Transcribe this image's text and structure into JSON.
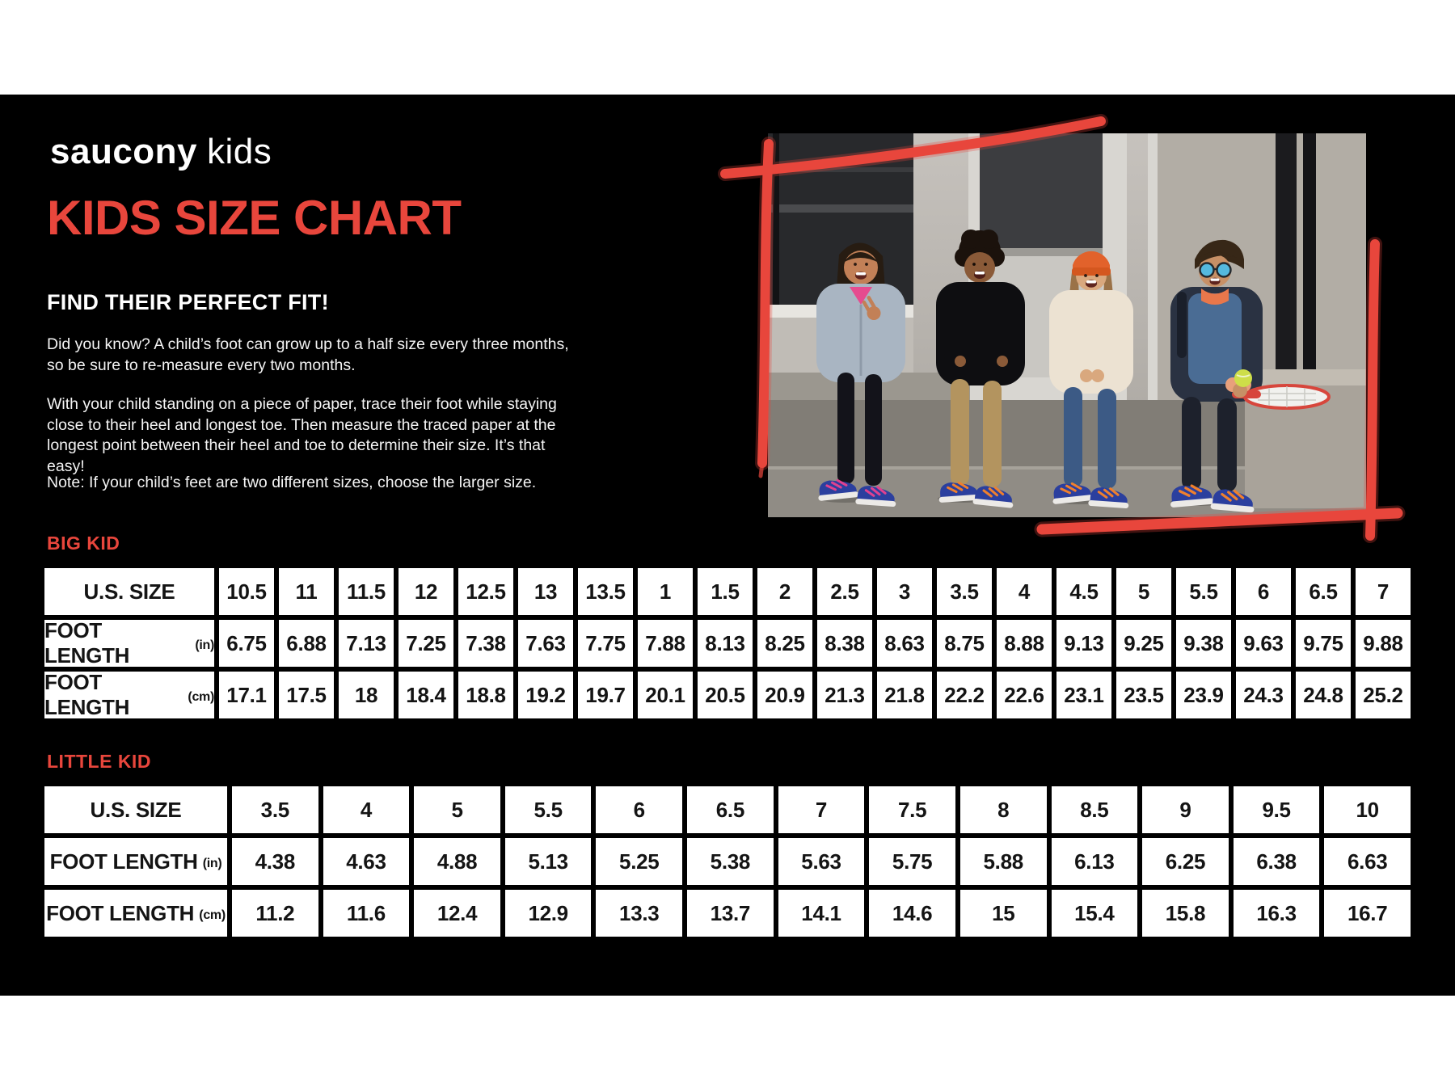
{
  "brand": {
    "logo_primary": "saucony",
    "logo_secondary": "kids"
  },
  "page_title": "KIDS SIZE CHART",
  "intro": {
    "heading": "FIND THEIR PERFECT FIT!",
    "p1": "Did you know? A child’s foot can grow up to a half size every three months, so be sure to re-measure every two months.",
    "p2": "With your child standing on a piece of paper, trace their foot while staying close to their heel and longest toe. Then measure the traced paper at the longest point between their heel and toe to determine their size. It’s that easy!",
    "note": "Note: If your child’s feet are two different sizes, choose the larger size."
  },
  "colors": {
    "accent_red": "#E8463C",
    "canvas_black": "#000000",
    "page_white": "#FFFFFF",
    "cell_text": "#141414"
  },
  "chart_data": [
    {
      "type": "table",
      "title": "BIG KID",
      "row_headers": [
        {
          "label": "U.S. SIZE",
          "unit": ""
        },
        {
          "label": "FOOT LENGTH",
          "unit": "(in)"
        },
        {
          "label": "FOOT LENGTH",
          "unit": "(cm)"
        }
      ],
      "rows": [
        [
          "10.5",
          "11",
          "11.5",
          "12",
          "12.5",
          "13",
          "13.5",
          "1",
          "1.5",
          "2",
          "2.5",
          "3",
          "3.5",
          "4",
          "4.5",
          "5",
          "5.5",
          "6",
          "6.5",
          "7"
        ],
        [
          "6.75",
          "6.88",
          "7.13",
          "7.25",
          "7.38",
          "7.63",
          "7.75",
          "7.88",
          "8.13",
          "8.25",
          "8.38",
          "8.63",
          "8.75",
          "8.88",
          "9.13",
          "9.25",
          "9.38",
          "9.63",
          "9.75",
          "9.88"
        ],
        [
          "17.1",
          "17.5",
          "18",
          "18.4",
          "18.8",
          "19.2",
          "19.7",
          "20.1",
          "20.5",
          "20.9",
          "21.3",
          "21.8",
          "22.2",
          "22.6",
          "23.1",
          "23.5",
          "23.9",
          "24.3",
          "24.8",
          "25.2"
        ]
      ]
    },
    {
      "type": "table",
      "title": "LITTLE KID",
      "row_headers": [
        {
          "label": "U.S. SIZE",
          "unit": ""
        },
        {
          "label": "FOOT LENGTH",
          "unit": "(in)"
        },
        {
          "label": "FOOT LENGTH",
          "unit": "(cm)"
        }
      ],
      "rows": [
        [
          "3.5",
          "4",
          "5",
          "5.5",
          "6",
          "6.5",
          "7",
          "7.5",
          "8",
          "8.5",
          "9",
          "9.5",
          "10"
        ],
        [
          "4.38",
          "4.63",
          "4.88",
          "5.13",
          "5.25",
          "5.38",
          "5.63",
          "5.75",
          "5.88",
          "6.13",
          "6.25",
          "6.38",
          "6.63"
        ],
        [
          "11.2",
          "11.6",
          "12.4",
          "12.9",
          "13.3",
          "13.7",
          "14.1",
          "14.6",
          "15",
          "15.4",
          "15.8",
          "16.3",
          "16.7"
        ]
      ]
    }
  ]
}
